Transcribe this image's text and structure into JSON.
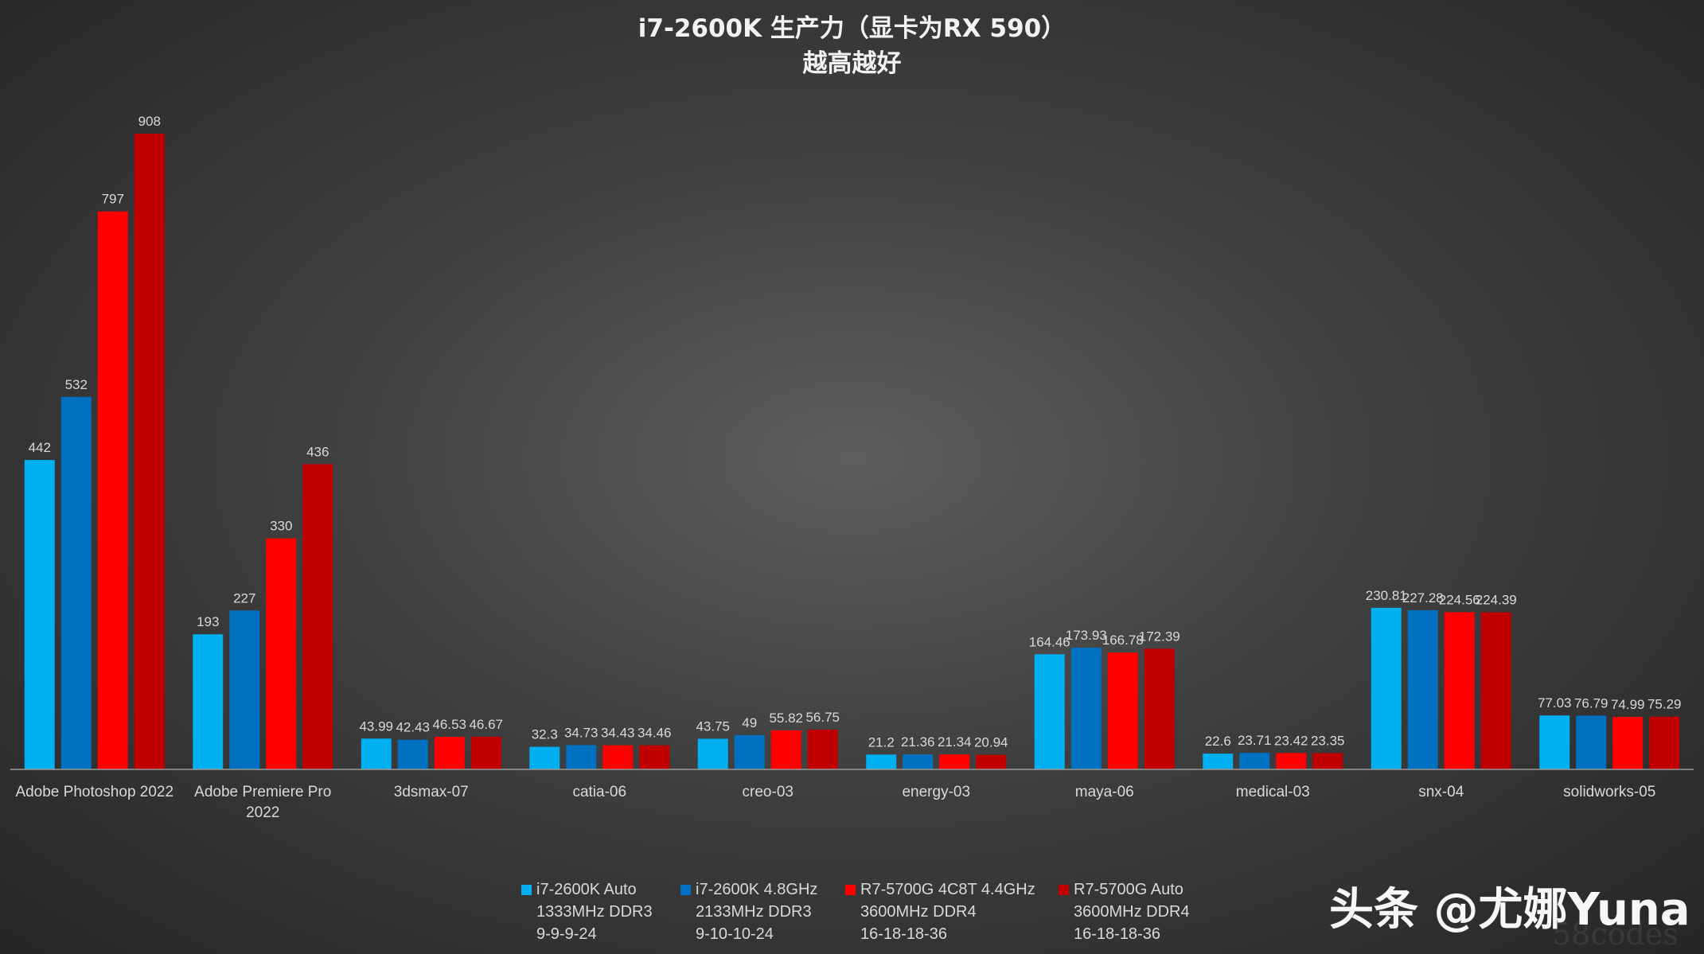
{
  "header": {
    "title_line1": "i7-2600K 生产力（显卡为RX 590）",
    "title_line2": "越高越好"
  },
  "chart_data": {
    "type": "bar",
    "title": "i7-2600K 生产力（显卡为RX 590）",
    "subtitle": "越高越好",
    "categories": [
      [
        "Adobe Photoshop 2022"
      ],
      [
        "Adobe Premiere Pro",
        "2022"
      ],
      [
        "3dsmax-07"
      ],
      [
        "catia-06"
      ],
      [
        "creo-03"
      ],
      [
        "energy-03"
      ],
      [
        "maya-06"
      ],
      [
        "medical-03"
      ],
      [
        "snx-04"
      ],
      [
        "solidworks-05"
      ]
    ],
    "series": [
      {
        "name": "i7-2600K Auto 1333MHz DDR3 9-9-9-24",
        "legend_lines": [
          "i7-2600K Auto",
          "1333MHz DDR3",
          "9-9-9-24"
        ],
        "color": "#00b0f0",
        "values": [
          442,
          193,
          43.99,
          32.3,
          43.75,
          21.2,
          164.46,
          22.6,
          230.81,
          77.03
        ],
        "labels": [
          "442",
          "193",
          "43.99",
          "32.3",
          "43.75",
          "21.2",
          "164.46",
          "22.6",
          "230.81",
          "77.03"
        ]
      },
      {
        "name": "i7-2600K 4.8GHz 2133MHz DDR3 9-10-10-24",
        "legend_lines": [
          "i7-2600K 4.8GHz",
          "2133MHz DDR3",
          "9-10-10-24"
        ],
        "color": "#0070c0",
        "values": [
          532,
          227,
          42.43,
          34.73,
          49,
          21.36,
          173.93,
          23.71,
          227.28,
          76.79
        ],
        "labels": [
          "532",
          "227",
          "42.43",
          "34.73",
          "49",
          "21.36",
          "173.93",
          "23.71",
          "227.28",
          "76.79"
        ]
      },
      {
        "name": "R7-5700G 4C8T 4.4GHz 3600MHz DDR4 16-18-18-36",
        "legend_lines": [
          "R7-5700G 4C8T 4.4GHz",
          "3600MHz DDR4",
          "16-18-18-36"
        ],
        "color": "#ff0000",
        "values": [
          797,
          330,
          46.53,
          34.43,
          55.82,
          21.34,
          166.78,
          23.42,
          224.56,
          74.99
        ],
        "labels": [
          "797",
          "330",
          "46.53",
          "34.43",
          "55.82",
          "21.34",
          "166.78",
          "23.42",
          "224.56",
          "74.99"
        ]
      },
      {
        "name": "R7-5700G Auto 3600MHz DDR4 16-18-18-36",
        "legend_lines": [
          "R7-5700G Auto",
          "3600MHz DDR4",
          "16-18-18-36"
        ],
        "color": "#c00000",
        "values": [
          908,
          436,
          46.67,
          34.46,
          56.75,
          20.94,
          172.39,
          23.35,
          224.39,
          75.29
        ],
        "labels": [
          "908",
          "436",
          "46.67",
          "34.46",
          "56.75",
          "20.94",
          "172.39",
          "23.35",
          "224.39",
          "75.29"
        ]
      }
    ],
    "ylim": [
      0,
      908
    ],
    "grid": false,
    "legend_position": "bottom"
  },
  "watermark": {
    "text": "头条 @尤娜Yuna",
    "faint_text": "58codes"
  }
}
